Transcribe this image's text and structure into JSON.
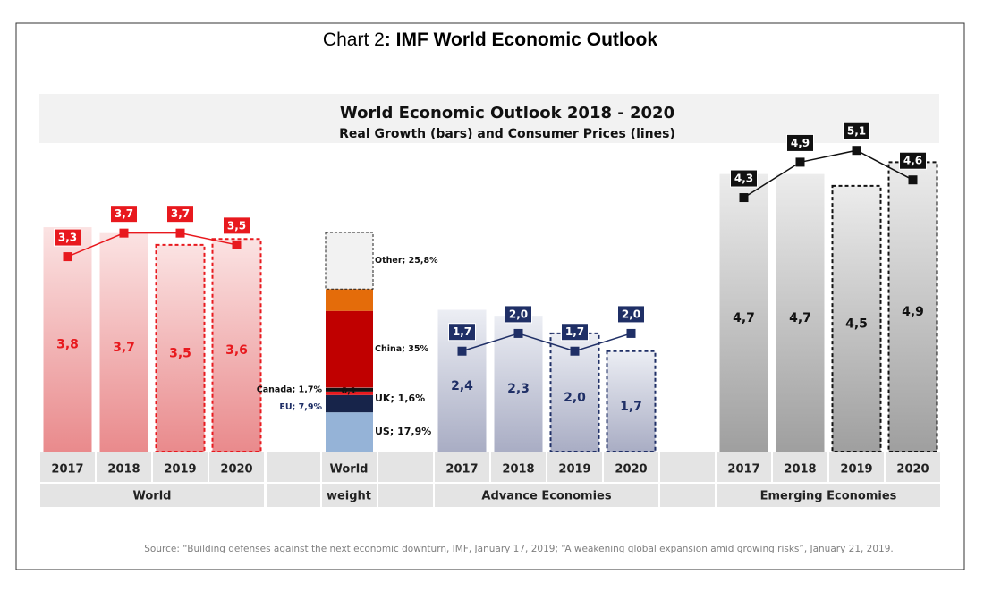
{
  "chart_data": {
    "type": "combo",
    "title": "Chart 2",
    "title_bold": ": IMF World Economic Outlook",
    "subtitle": "World Economic Outlook 2018 - 2020",
    "subtitle2": "Real Growth (bars) and Consumer Prices (lines)",
    "source": "Source: “Building defenses against the next economic downturn, IMF, January 17, 2019; “A weakening global expansion amid growing risks”, January 21, 2019.",
    "ylim": [
      0,
      5.3
    ],
    "groups": [
      {
        "name": "World",
        "color": "#e8191e",
        "bar_colors": [
          "#fbe3e3",
          "#e98a8c"
        ],
        "categories": [
          "2017",
          "2018",
          "2019",
          "2020"
        ],
        "projected": [
          false,
          false,
          true,
          true
        ],
        "growth": {
          "values": [
            3.8,
            3.7,
            3.5,
            3.6
          ],
          "value_labels": [
            "3,8",
            "3,7",
            "3,5",
            "3,6"
          ]
        },
        "prices": {
          "values": [
            3.3,
            3.7,
            3.7,
            3.5
          ],
          "value_labels": [
            "3,3",
            "3,7",
            "3,7",
            "3,5"
          ]
        }
      },
      {
        "name": "Advance Economies",
        "color": "#1f2f66",
        "bar_colors": [
          "#eceef4",
          "#a9adc4"
        ],
        "categories": [
          "2017",
          "2018",
          "2019",
          "2020"
        ],
        "projected": [
          false,
          false,
          true,
          true
        ],
        "growth": {
          "values": [
            2.4,
            2.3,
            2.0,
            1.7
          ],
          "value_labels": [
            "2,4",
            "2,3",
            "2,0",
            "1,7"
          ]
        },
        "prices": {
          "values": [
            1.7,
            2.0,
            1.7,
            2.0
          ],
          "value_labels": [
            "1,7",
            "2,0",
            "1,7",
            "2,0"
          ]
        }
      },
      {
        "name": "Emerging Economies",
        "color": "#111111",
        "bar_colors": [
          "#ececec",
          "#9f9f9f"
        ],
        "categories": [
          "2017",
          "2018",
          "2019",
          "2020"
        ],
        "projected": [
          false,
          false,
          true,
          true
        ],
        "growth": {
          "values": [
            4.7,
            4.7,
            4.5,
            4.9
          ],
          "value_labels": [
            "4,7",
            "4,7",
            "4,5",
            "4,9"
          ]
        },
        "prices": {
          "values": [
            4.3,
            4.9,
            5.1,
            4.6
          ],
          "value_labels": [
            "4,3",
            "4,9",
            "5,1",
            "4,6"
          ]
        }
      }
    ],
    "weight": {
      "name": [
        "World",
        "weight"
      ],
      "ylim": [
        0,
        100
      ],
      "segments": {
        "labels": [
          "US; 17,9%",
          "EU; 7,9%",
          "UK; 1,6%",
          "Canada; 1,7%",
          "0,1",
          "China; 35%",
          null,
          "Other; 25,8%"
        ],
        "values": [
          17.9,
          7.9,
          1.6,
          1.7,
          0.1,
          35,
          10,
          25.8
        ],
        "colors": [
          "#95b3d7",
          "#17244a",
          "#e8191e",
          "#111111",
          "#ffffff",
          "#c00000",
          "#e46c0a",
          "#f2f2f2"
        ]
      }
    }
  }
}
